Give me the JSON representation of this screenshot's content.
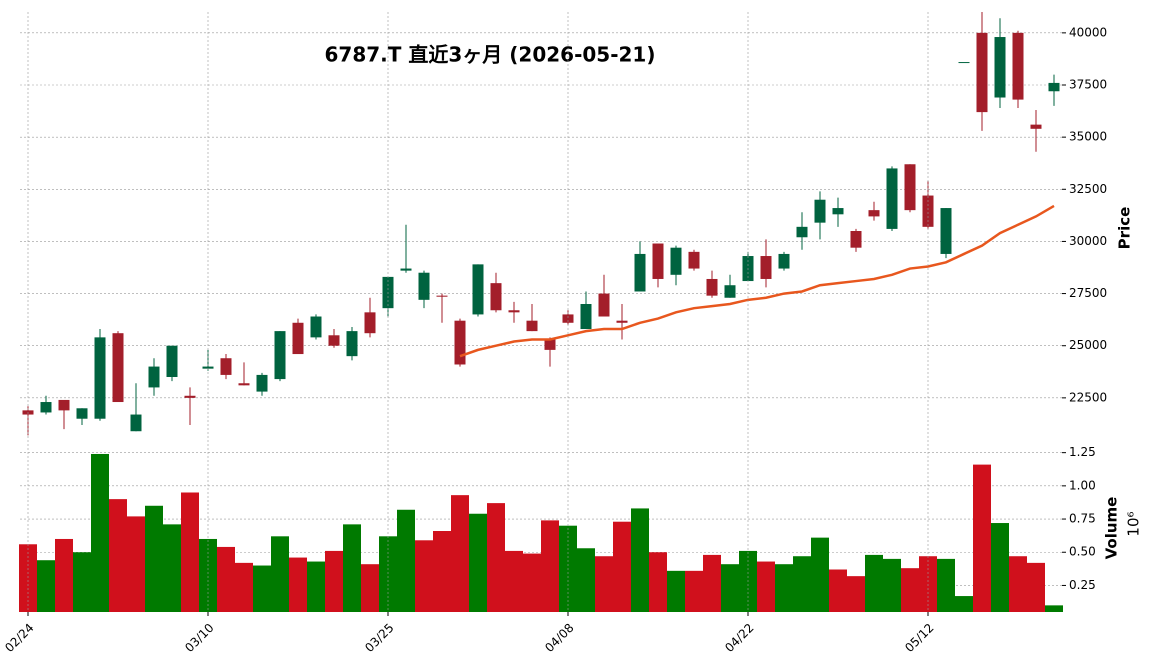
{
  "chart_data": [
    {
      "type": "candlestick",
      "title": "6787.T  直近3ヶ月  (2026-05-21)",
      "y_label": "Price",
      "open": [
        21900,
        21800,
        22400,
        21500,
        21500,
        25600,
        20900,
        23000,
        23500,
        22600,
        23900,
        24400,
        23200,
        22800,
        23400,
        26100,
        25400,
        25500,
        24500,
        26600,
        26800,
        28600,
        27200,
        27400,
        26200,
        26500,
        28000,
        26700,
        26200,
        25300,
        26500,
        25800,
        27500,
        26200,
        27600,
        29900,
        28400,
        29500,
        28200,
        27300,
        28100,
        29300,
        28700,
        30200,
        30900,
        31300,
        30500,
        31500,
        30600,
        33700,
        32200,
        29400,
        38600,
        40000,
        36900,
        40000,
        35600,
        37200
      ],
      "high": [
        22100,
        22600,
        22400,
        22000,
        25800,
        25700,
        23200,
        24400,
        25000,
        23000,
        24800,
        24600,
        24200,
        23700,
        25700,
        26300,
        26500,
        25800,
        25900,
        27300,
        28300,
        30800,
        28600,
        27500,
        26300,
        28900,
        28500,
        27100,
        27000,
        25400,
        26700,
        27600,
        28400,
        27000,
        30000,
        29900,
        29800,
        29600,
        28600,
        28400,
        29500,
        30100,
        29500,
        31400,
        32400,
        32100,
        30600,
        31900,
        33600,
        33700,
        32900,
        31600,
        38600,
        41000,
        40700,
        40100,
        36300,
        38000
      ],
      "low": [
        20700,
        21700,
        21000,
        21200,
        21400,
        22300,
        20900,
        22600,
        23300,
        21200,
        23800,
        23400,
        23100,
        22600,
        23300,
        24600,
        25300,
        24900,
        24300,
        25400,
        26400,
        28500,
        26800,
        26100,
        24000,
        26400,
        26600,
        26100,
        25700,
        24000,
        26000,
        25800,
        26400,
        25300,
        27600,
        27800,
        27900,
        28600,
        27300,
        27300,
        28100,
        27800,
        28600,
        29600,
        30100,
        30700,
        29500,
        31000,
        30500,
        31400,
        30600,
        29200,
        38600,
        35300,
        36400,
        36400,
        34300,
        36500
      ],
      "close": [
        21700,
        22300,
        21900,
        22000,
        25400,
        22300,
        21700,
        24000,
        25000,
        22500,
        24000,
        23600,
        23100,
        23600,
        25700,
        24600,
        26400,
        25000,
        25700,
        25600,
        28300,
        28700,
        28500,
        27350,
        24100,
        28900,
        26700,
        26600,
        25700,
        24800,
        26100,
        27000,
        26400,
        26100,
        29400,
        28200,
        29700,
        28700,
        27400,
        27900,
        29300,
        28200,
        29400,
        30700,
        32000,
        31600,
        29700,
        31200,
        33500,
        31500,
        30700,
        31600,
        38600,
        36200,
        39800,
        36800,
        35400,
        37600
      ],
      "up_color": "#00633f",
      "down_color": "#a31e2a",
      "ma": {
        "color": "#e8571e",
        "values": [
          null,
          null,
          null,
          null,
          null,
          null,
          null,
          null,
          null,
          null,
          null,
          null,
          null,
          null,
          null,
          null,
          null,
          null,
          null,
          null,
          null,
          null,
          null,
          null,
          24500,
          24800,
          25000,
          25200,
          25300,
          25300,
          25500,
          25700,
          25800,
          25800,
          26100,
          26300,
          26600,
          26800,
          26900,
          27000,
          27200,
          27300,
          27500,
          27600,
          27900,
          28000,
          28100,
          28200,
          28400,
          28700,
          28800,
          29000,
          29400,
          29800,
          30400,
          30800,
          31200,
          31700
        ]
      },
      "ylim": [
        20000,
        41000
      ],
      "yticks": [
        22500,
        25000,
        27500,
        30000,
        32500,
        35000,
        37500,
        40000
      ],
      "grid": true
    },
    {
      "type": "bar",
      "y_label": "Volume",
      "y_offset_label": "10⁶",
      "categories": [
        "02/24",
        null,
        null,
        null,
        null,
        null,
        null,
        null,
        null,
        null,
        "03/10",
        null,
        null,
        null,
        null,
        null,
        null,
        null,
        null,
        null,
        "03/25",
        null,
        null,
        null,
        null,
        null,
        null,
        null,
        null,
        null,
        "04/08",
        null,
        null,
        null,
        null,
        null,
        null,
        null,
        null,
        null,
        "04/22",
        null,
        null,
        null,
        null,
        null,
        null,
        null,
        null,
        null,
        "05/12",
        null,
        null,
        null,
        null,
        null,
        null,
        null
      ],
      "values": [
        0.56,
        0.44,
        0.6,
        0.5,
        1.24,
        0.9,
        0.77,
        0.85,
        0.71,
        0.95,
        0.6,
        0.54,
        0.42,
        0.4,
        0.62,
        0.46,
        0.43,
        0.51,
        0.71,
        0.41,
        0.62,
        0.82,
        0.59,
        0.66,
        0.93,
        0.79,
        0.87,
        0.51,
        0.49,
        0.74,
        0.7,
        0.53,
        0.47,
        0.73,
        0.83,
        0.5,
        0.36,
        0.36,
        0.48,
        0.41,
        0.51,
        0.43,
        0.41,
        0.47,
        0.61,
        0.37,
        0.32,
        0.48,
        0.45,
        0.38,
        0.47,
        0.45,
        0.17,
        1.16,
        0.72,
        0.47,
        0.42,
        0.1
      ],
      "colors": [
        "#d0101c",
        "#007a00",
        "#d0101c",
        "#007a00",
        "#007a00",
        "#d0101c",
        "#d0101c",
        "#007a00",
        "#007a00",
        "#d0101c",
        "#007a00",
        "#d0101c",
        "#d0101c",
        "#007a00",
        "#007a00",
        "#d0101c",
        "#007a00",
        "#d0101c",
        "#007a00",
        "#d0101c",
        "#007a00",
        "#007a00",
        "#d0101c",
        "#d0101c",
        "#d0101c",
        "#007a00",
        "#d0101c",
        "#d0101c",
        "#d0101c",
        "#d0101c",
        "#007a00",
        "#007a00",
        "#d0101c",
        "#d0101c",
        "#007a00",
        "#d0101c",
        "#007a00",
        "#d0101c",
        "#d0101c",
        "#007a00",
        "#007a00",
        "#d0101c",
        "#007a00",
        "#007a00",
        "#007a00",
        "#d0101c",
        "#d0101c",
        "#007a00",
        "#007a00",
        "#d0101c",
        "#d0101c",
        "#007a00",
        "#007a00",
        "#d0101c",
        "#007a00",
        "#d0101c",
        "#d0101c",
        "#007a00"
      ],
      "ylim": [
        0.05,
        1.27
      ],
      "yticks": [
        {
          "value": 0.25,
          "label": "0.25"
        },
        {
          "value": 0.5,
          "label": "0.50"
        },
        {
          "value": 0.75,
          "label": "0.75"
        },
        {
          "value": 1,
          "label": "1.00"
        },
        {
          "value": 1.25,
          "label": "1.25"
        }
      ],
      "grid": true
    }
  ]
}
